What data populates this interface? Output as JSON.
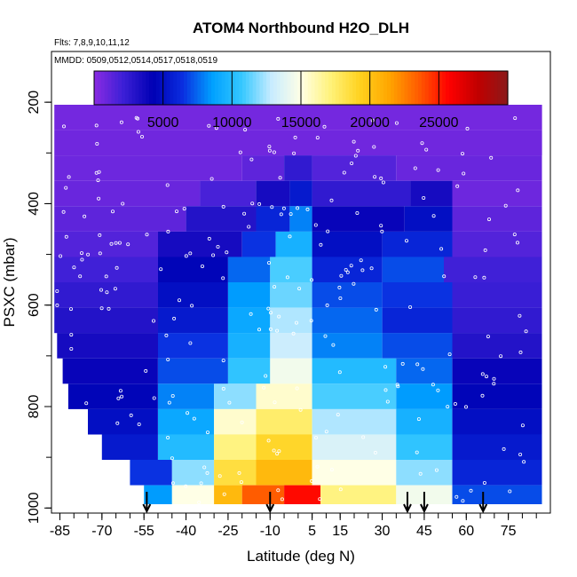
{
  "chart_data": {
    "type": "heatmap",
    "title": "ATOM4 Northbound H2O_DLH",
    "subtitle_flights": "Flts: 7,8,9,10,11,12",
    "subtitle_dates": "MMDD: 0509,0512,0514,0517,0518,0519",
    "xlabel": "Latitude (deg N)",
    "ylabel": "PSXC (mbar)",
    "xlim": [
      -88,
      90
    ],
    "ylim": [
      1010,
      100
    ],
    "x_ticks": [
      -85,
      -70,
      -55,
      -40,
      -25,
      -10,
      5,
      15,
      30,
      45,
      60,
      75
    ],
    "y_ticks": [
      200,
      400,
      600,
      800,
      1000
    ],
    "colorbar": {
      "range": [
        0,
        30000
      ],
      "ticks": [
        5000,
        10000,
        15000,
        20000,
        25000
      ],
      "colors": [
        "#8a2be2",
        "#3b1fd6",
        "#0000b4",
        "#0a2ee0",
        "#00a0ff",
        "#35c8ff",
        "#c8ecff",
        "#ffffe6",
        "#fff27a",
        "#ffd21e",
        "#ffa500",
        "#ff5a00",
        "#ff0000",
        "#c00000",
        "#8b1a1a"
      ]
    },
    "profile_markers_lat": [
      -54,
      -10,
      39,
      45,
      66
    ],
    "rows": [
      {
        "p": 180,
        "segments": [
          [
            -72,
            72,
            500
          ]
        ]
      },
      {
        "p": 230,
        "segments": [
          [
            -87,
            87,
            600
          ]
        ]
      },
      {
        "p": 280,
        "segments": [
          [
            -87,
            87,
            700
          ]
        ]
      },
      {
        "p": 330,
        "segments": [
          [
            -87,
            -20,
            800
          ],
          [
            -20,
            -5,
            1200
          ],
          [
            -5,
            5,
            2500
          ],
          [
            5,
            35,
            1500
          ],
          [
            35,
            87,
            900
          ]
        ]
      },
      {
        "p": 380,
        "segments": [
          [
            -87,
            -35,
            900
          ],
          [
            -35,
            -15,
            1800
          ],
          [
            -15,
            -3,
            3500
          ],
          [
            -3,
            5,
            5500
          ],
          [
            5,
            40,
            2500
          ],
          [
            40,
            55,
            3500
          ],
          [
            55,
            87,
            800
          ]
        ]
      },
      {
        "p": 430,
        "segments": [
          [
            -87,
            -40,
            1200
          ],
          [
            -40,
            -15,
            3000
          ],
          [
            -15,
            -3,
            6000
          ],
          [
            -3,
            5,
            8000
          ],
          [
            5,
            38,
            4000
          ],
          [
            38,
            55,
            5000
          ],
          [
            55,
            87,
            1200
          ]
        ]
      },
      {
        "p": 480,
        "segments": [
          [
            -87,
            -50,
            1500
          ],
          [
            -50,
            -20,
            3500
          ],
          [
            -20,
            -8,
            6500
          ],
          [
            -8,
            5,
            9500
          ],
          [
            5,
            30,
            5000
          ],
          [
            30,
            55,
            6000
          ],
          [
            55,
            87,
            1500
          ]
        ]
      },
      {
        "p": 530,
        "segments": [
          [
            -87,
            -50,
            2000
          ],
          [
            -50,
            -25,
            4500
          ],
          [
            -25,
            -10,
            7500
          ],
          [
            -10,
            5,
            11000
          ],
          [
            5,
            30,
            6000
          ],
          [
            30,
            52,
            7000
          ],
          [
            52,
            87,
            2000
          ]
        ]
      },
      {
        "p": 580,
        "segments": [
          [
            -87,
            -50,
            2500
          ],
          [
            -50,
            -25,
            5000
          ],
          [
            -25,
            -10,
            8500
          ],
          [
            -10,
            5,
            11500
          ],
          [
            5,
            30,
            7000
          ],
          [
            30,
            55,
            6500
          ],
          [
            55,
            87,
            2200
          ]
        ]
      },
      {
        "p": 630,
        "segments": [
          [
            -87,
            -50,
            3000
          ],
          [
            -50,
            -25,
            5500
          ],
          [
            -25,
            -10,
            9000
          ],
          [
            -10,
            5,
            12500
          ],
          [
            5,
            30,
            7500
          ],
          [
            30,
            55,
            6000
          ],
          [
            55,
            87,
            2500
          ]
        ]
      },
      {
        "p": 680,
        "segments": [
          [
            -86,
            -50,
            3500
          ],
          [
            -50,
            -25,
            6500
          ],
          [
            -25,
            -10,
            9500
          ],
          [
            -10,
            5,
            13000
          ],
          [
            5,
            30,
            8000
          ],
          [
            30,
            55,
            7000
          ],
          [
            55,
            87,
            3000
          ]
        ]
      },
      {
        "p": 730,
        "segments": [
          [
            -84,
            -50,
            4000
          ],
          [
            -50,
            -25,
            7000
          ],
          [
            -25,
            -10,
            10500
          ],
          [
            -10,
            5,
            14500
          ],
          [
            5,
            35,
            10000
          ],
          [
            35,
            55,
            7500
          ],
          [
            55,
            87,
            4000
          ]
        ]
      },
      {
        "p": 780,
        "segments": [
          [
            -82,
            -50,
            4500
          ],
          [
            -50,
            -30,
            8000
          ],
          [
            -30,
            -15,
            12000
          ],
          [
            -15,
            5,
            15500
          ],
          [
            5,
            35,
            11000
          ],
          [
            35,
            55,
            8500
          ],
          [
            55,
            87,
            4500
          ]
        ]
      },
      {
        "p": 830,
        "segments": [
          [
            -75,
            -50,
            5000
          ],
          [
            -50,
            -30,
            9000
          ],
          [
            -30,
            -15,
            15500
          ],
          [
            -15,
            5,
            17500
          ],
          [
            5,
            35,
            12500
          ],
          [
            35,
            55,
            9500
          ],
          [
            55,
            87,
            5000
          ]
        ]
      },
      {
        "p": 880,
        "segments": [
          [
            -70,
            -50,
            5500
          ],
          [
            -50,
            -30,
            10000
          ],
          [
            -30,
            -15,
            17000
          ],
          [
            -15,
            5,
            19000
          ],
          [
            5,
            35,
            13500
          ],
          [
            35,
            55,
            10500
          ],
          [
            55,
            87,
            5500
          ]
        ]
      },
      {
        "p": 930,
        "segments": [
          [
            -60,
            -45,
            6500
          ],
          [
            -45,
            -30,
            12000
          ],
          [
            -30,
            -15,
            18500
          ],
          [
            -15,
            5,
            20500
          ],
          [
            5,
            35,
            15000
          ],
          [
            35,
            55,
            12000
          ],
          [
            55,
            87,
            6000
          ]
        ]
      },
      {
        "p": 980,
        "segments": [
          [
            -55,
            -45,
            8500
          ],
          [
            -45,
            -30,
            15000
          ],
          [
            -30,
            -20,
            20500
          ],
          [
            -20,
            -5,
            23500
          ],
          [
            -5,
            8,
            25500
          ],
          [
            8,
            35,
            17000
          ],
          [
            35,
            55,
            14500
          ],
          [
            55,
            87,
            7000
          ]
        ]
      }
    ]
  }
}
